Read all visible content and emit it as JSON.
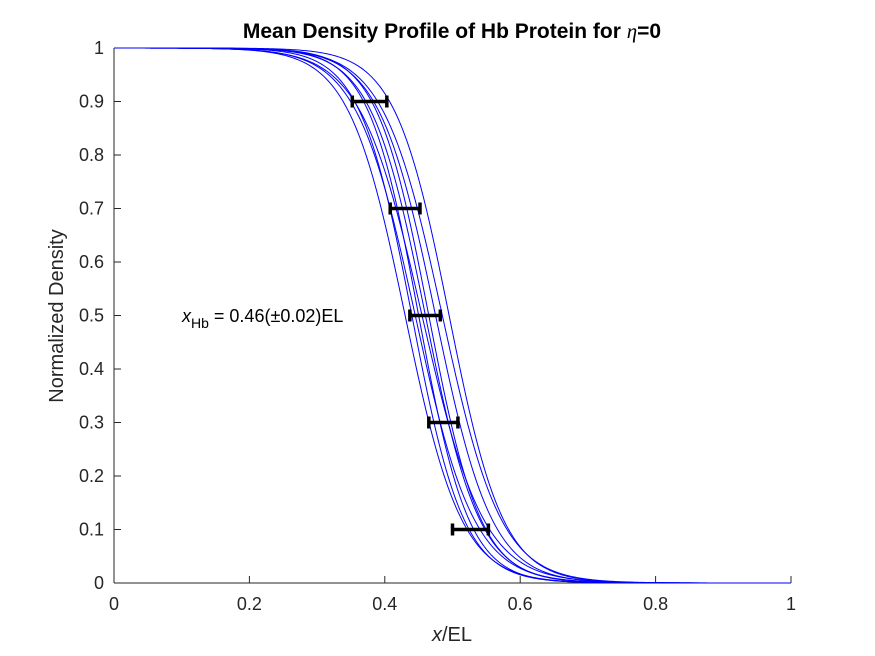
{
  "chart_data": {
    "type": "line",
    "title_main": "Mean Density Profile of Hb Protein for ",
    "title_symbol": "η",
    "title_value": "=0",
    "xlabel_var": "x",
    "xlabel_unit": "/EL",
    "ylabel": "Normalized Density",
    "xlim": [
      0,
      1
    ],
    "ylim": [
      0,
      1
    ],
    "x_ticks": [
      0,
      0.2,
      0.4,
      0.6,
      0.8,
      1
    ],
    "x_tick_labels": [
      "0",
      "0.2",
      "0.4",
      "0.6",
      "0.8",
      "1"
    ],
    "y_ticks": [
      0,
      0.1,
      0.2,
      0.3,
      0.4,
      0.5,
      0.6,
      0.7,
      0.8,
      0.9,
      1
    ],
    "y_tick_labels": [
      "0",
      "0.1",
      "0.2",
      "0.3",
      "0.4",
      "0.5",
      "0.6",
      "0.7",
      "0.8",
      "0.9",
      "1"
    ],
    "grid": false,
    "series_color": "#0000ff",
    "errorbar_color": "#000000",
    "curves": [
      {
        "midpoint": 0.43,
        "steepness": 24
      },
      {
        "midpoint": 0.44,
        "steepness": 26
      },
      {
        "midpoint": 0.445,
        "steepness": 23
      },
      {
        "midpoint": 0.45,
        "steepness": 27
      },
      {
        "midpoint": 0.455,
        "steepness": 22
      },
      {
        "midpoint": 0.46,
        "steepness": 25
      },
      {
        "midpoint": 0.465,
        "steepness": 26
      },
      {
        "midpoint": 0.475,
        "steepness": 24
      },
      {
        "midpoint": 0.485,
        "steepness": 23
      },
      {
        "midpoint": 0.495,
        "steepness": 25
      }
    ],
    "error_bars": [
      {
        "y": 0.9,
        "x_low": 0.352,
        "x_high": 0.403
      },
      {
        "y": 0.7,
        "x_low": 0.408,
        "x_high": 0.452
      },
      {
        "y": 0.5,
        "x_low": 0.437,
        "x_high": 0.482
      },
      {
        "y": 0.3,
        "x_low": 0.465,
        "x_high": 0.508
      },
      {
        "y": 0.1,
        "x_low": 0.5,
        "x_high": 0.553
      }
    ],
    "annotation": {
      "var": "x",
      "subscript": "Hb",
      "text": " = 0.46(±0.02)EL",
      "x": 0.1,
      "y": 0.5
    }
  }
}
